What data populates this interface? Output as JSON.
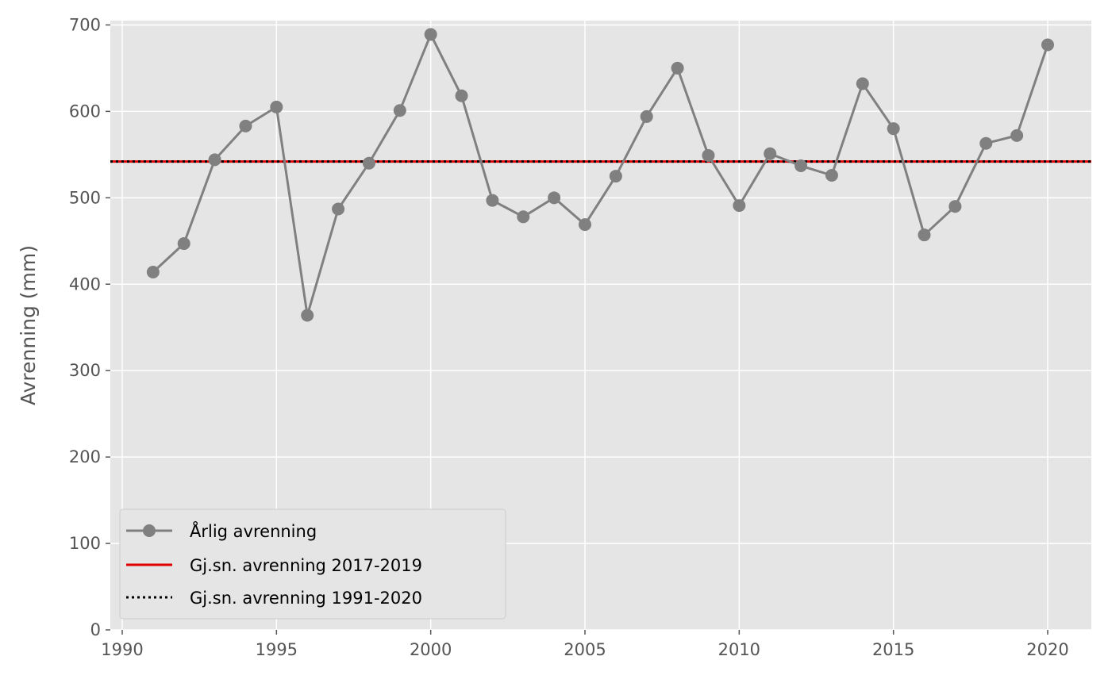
{
  "chart_data": {
    "type": "line",
    "title": "",
    "xlabel": "",
    "ylabel": "Avrenning (mm)",
    "xlim": [
      1989.55,
      1986.0
    ],
    "ylim": [
      0,
      705
    ],
    "xticks": [
      1990,
      1995,
      2000,
      2005,
      2010,
      2015,
      2020
    ],
    "yticks": [
      0,
      100,
      200,
      300,
      400,
      500,
      600,
      700
    ],
    "grid": true,
    "legend_position": "lower-left",
    "series": [
      {
        "name": "Årlig avrenning",
        "style": "line-marker",
        "color": "#808080",
        "x": [
          1991,
          1992,
          1993,
          1994,
          1995,
          1996,
          1997,
          1998,
          1999,
          2000,
          2001,
          2002,
          2003,
          2004,
          2005,
          2006,
          2007,
          2008,
          2009,
          2010,
          2011,
          2012,
          2013,
          2014,
          2015,
          2016,
          2017,
          2018,
          2019,
          2020
        ],
        "y": [
          414,
          447,
          544,
          583,
          605,
          364,
          487,
          540,
          601,
          689,
          618,
          497,
          478,
          500,
          469,
          525,
          594,
          650,
          549,
          491,
          551,
          537,
          526,
          632,
          580,
          457,
          490,
          563,
          572,
          677
        ]
      },
      {
        "name": "Gj.sn. avrenning 2017-2019",
        "style": "hline-solid",
        "color": "#e00000",
        "y": 542
      },
      {
        "name": "Gj.sn. avrenning 1991-2020",
        "style": "hline-dotted",
        "color": "#000000",
        "y": 542
      }
    ]
  }
}
